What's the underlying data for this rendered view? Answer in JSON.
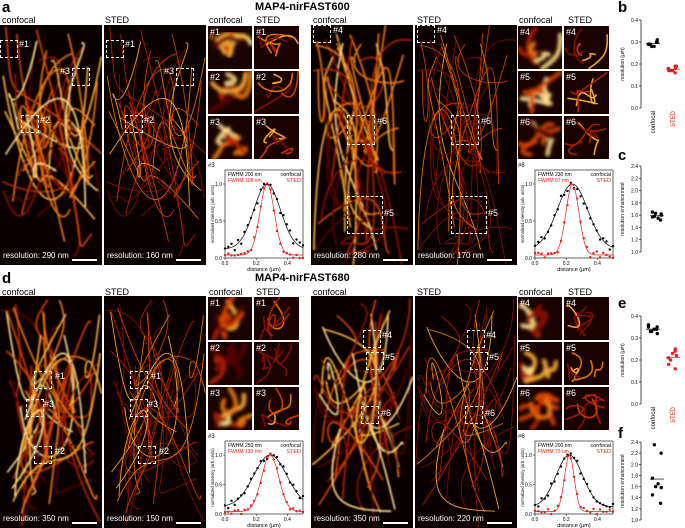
{
  "panel_letters": {
    "a": "a",
    "b": "b",
    "c": "c",
    "d": "d",
    "e": "e",
    "f": "f"
  },
  "titles": {
    "top": "MAP4-nirFAST600",
    "bottom": "MAP4-nirFAST680"
  },
  "headers": {
    "confocal": "confocal",
    "sted": "STED"
  },
  "roi_labels": [
    "#1",
    "#2",
    "#3",
    "#4",
    "#5",
    "#6"
  ],
  "resolutions": {
    "a_left_confocal": "resolution: 290 nm",
    "a_left_sted": "resolution: 160 nm",
    "a_right_confocal": "resolution: 280 nm",
    "a_right_sted": "resolution: 170 nm",
    "d_left_confocal": "resolution: 350 nm",
    "d_left_sted": "resolution: 150 nm",
    "d_right_confocal": "resolution: 350 nm",
    "d_right_sted": "resolution: 220 nm"
  },
  "profiles": {
    "a3": {
      "tag": "#3",
      "fwhm_conf": "FWHM 200 nm",
      "fwhm_sted": "FWHM 108 nm",
      "legend_conf": "confocal",
      "legend_sted": "STED",
      "xlabel": "distance (µm)",
      "ylabel": "normalized intensity (arb. units)",
      "xticks": [
        "0.0",
        "0.2",
        "0.4"
      ],
      "yticks": [
        "0.0",
        "0.5",
        "1.0"
      ]
    },
    "a6": {
      "tag": "#6",
      "fwhm_conf": "FWHM 230 nm",
      "fwhm_sted": "FWHM 97 nm",
      "legend_conf": "confocal",
      "legend_sted": "STED",
      "xlabel": "distance (µm)",
      "ylabel": "normalized intensity (arb. units)",
      "xticks": [
        "0.0",
        "0.2",
        "0.4"
      ],
      "yticks": [
        "0.0",
        "0.5",
        "1.0"
      ]
    },
    "d3": {
      "tag": "#3",
      "fwhm_conf": "FWHM 250 nm",
      "fwhm_sted": "FWHM 130 nm",
      "legend_conf": "confocal",
      "legend_sted": "STED",
      "xlabel": "distance (µm)",
      "ylabel": "normalized intensity (arb. units)",
      "xticks": [
        "0.0",
        "0.2",
        "0.4"
      ],
      "yticks": [
        "0.0",
        "0.5",
        "1.0"
      ]
    },
    "d6": {
      "tag": "#6",
      "fwhm_conf": "FWHM 200 nm",
      "fwhm_sted": "FWHM 73 nm",
      "legend_conf": "confocal",
      "legend_sted": "STED",
      "xlabel": "distance (µm)",
      "ylabel": "normalized intensity (arb. units)",
      "xticks": [
        "0.0",
        "0.2",
        "0.4"
      ],
      "yticks": [
        "0.0",
        "0.5",
        "1.0"
      ]
    }
  },
  "colors": {
    "confocal": "#000000",
    "sted": "#e0201b"
  },
  "chart_data": [
    {
      "type": "scatter",
      "panel": "b",
      "ylabel": "resolution (µm)",
      "categories": [
        "confocal",
        "STED"
      ],
      "ylim": [
        0.0,
        0.4
      ],
      "yticks": [
        "0.0",
        "0.1",
        "0.2",
        "0.3",
        "0.4"
      ],
      "series": [
        {
          "name": "confocal",
          "values": [
            0.29,
            0.3,
            0.28,
            0.31,
            0.29,
            0.3,
            0.28,
            0.29
          ]
        },
        {
          "name": "STED",
          "values": [
            0.17,
            0.18,
            0.19,
            0.17,
            0.16,
            0.18,
            0.19,
            0.17
          ]
        }
      ]
    },
    {
      "type": "scatter",
      "panel": "c",
      "ylabel": "resolution enhancement",
      "categories": [
        ""
      ],
      "ylim": [
        1.0,
        2.4
      ],
      "yticks": [
        "1.0",
        "1.2",
        "1.4",
        "1.6",
        "1.8",
        "2.0",
        "2.2",
        "2.4"
      ],
      "series": [
        {
          "values": [
            1.58,
            1.62,
            1.55,
            1.6,
            1.65,
            1.52,
            1.63,
            1.57
          ]
        }
      ]
    },
    {
      "type": "scatter",
      "panel": "e",
      "ylabel": "resolution (µm)",
      "categories": [
        "confocal",
        "STED"
      ],
      "ylim": [
        0.0,
        0.4
      ],
      "yticks": [
        "0.0",
        "0.1",
        "0.2",
        "0.3",
        "0.4"
      ],
      "series": [
        {
          "name": "confocal",
          "values": [
            0.33,
            0.35,
            0.34,
            0.32,
            0.36,
            0.34,
            0.33,
            0.35
          ]
        },
        {
          "name": "STED",
          "values": [
            0.2,
            0.25,
            0.22,
            0.18,
            0.24,
            0.21,
            0.16,
            0.23
          ]
        }
      ]
    },
    {
      "type": "scatter",
      "panel": "f",
      "ylabel": "resolution enhancement",
      "categories": [
        ""
      ],
      "ylim": [
        1.0,
        2.4
      ],
      "yticks": [
        "1.0",
        "1.2",
        "1.4",
        "1.6",
        "1.8",
        "2.0",
        "2.2",
        "2.4"
      ],
      "series": [
        {
          "values": [
            2.35,
            2.2,
            1.65,
            1.58,
            1.45,
            1.3,
            1.6,
            1.75
          ]
        }
      ]
    }
  ]
}
